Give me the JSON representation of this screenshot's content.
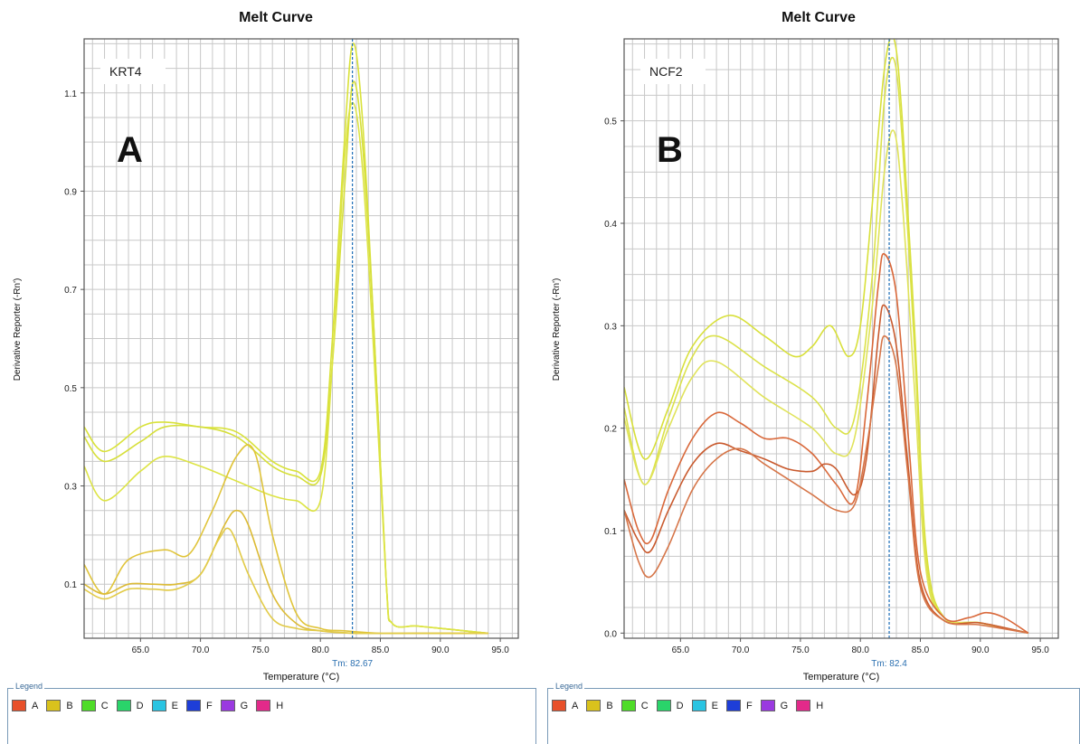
{
  "chart_data": [
    {
      "type": "line",
      "title": "Melt Curve",
      "panel_letter": "A",
      "gene_label": "KRT4",
      "xlabel": "Temperature (°C)",
      "ylabel": "Derivative Reporter (-Rn')",
      "xlim": [
        60.3,
        96.5
      ],
      "ylim": [
        -0.01,
        1.21
      ],
      "x_ticks": [
        65.0,
        70.0,
        75.0,
        80.0,
        85.0,
        90.0,
        95.0
      ],
      "x_tick_labels": [
        "65.0",
        "70.0",
        "75.0",
        "80.0",
        "85.0",
        "90.0",
        "95.0"
      ],
      "y_ticks": [
        0.1,
        0.3,
        0.5,
        0.7,
        0.9,
        1.1
      ],
      "y_tick_labels": [
        "0.1",
        "0.3",
        "0.5",
        "0.7",
        "0.9",
        "1.1"
      ],
      "grid": true,
      "threshold_x": 82.67,
      "threshold_label": "Tm: 82.67",
      "series": [
        {
          "color": "#d9e23a",
          "x": [
            60.3,
            62,
            65,
            67,
            70,
            73,
            76,
            78,
            80,
            81,
            82,
            82.7,
            83.5,
            84.5,
            85.5,
            86,
            88,
            90,
            92,
            94
          ],
          "y": [
            0.42,
            0.37,
            0.42,
            0.43,
            0.42,
            0.41,
            0.35,
            0.33,
            0.33,
            0.6,
            1.0,
            1.2,
            1.05,
            0.6,
            0.1,
            0.02,
            0.015,
            0.01,
            0.005,
            0.0
          ]
        },
        {
          "color": "#d6df3a",
          "x": [
            60.3,
            62,
            65,
            67,
            70,
            73,
            76,
            78,
            80,
            81,
            82,
            82.7,
            83.5,
            84.5,
            85.5,
            86,
            88,
            90,
            92,
            94
          ],
          "y": [
            0.4,
            0.35,
            0.39,
            0.42,
            0.42,
            0.4,
            0.34,
            0.32,
            0.32,
            0.55,
            0.9,
            1.12,
            1.0,
            0.6,
            0.1,
            0.02,
            0.015,
            0.01,
            0.005,
            0.0
          ]
        },
        {
          "color": "#dde444",
          "x": [
            60.3,
            62,
            65,
            67,
            70,
            73,
            76,
            78,
            80,
            81,
            82,
            82.7,
            83.5,
            84.5,
            85.5,
            86,
            88,
            90,
            92,
            94
          ],
          "y": [
            0.34,
            0.27,
            0.33,
            0.36,
            0.34,
            0.31,
            0.28,
            0.27,
            0.27,
            0.55,
            0.96,
            1.08,
            0.95,
            0.55,
            0.1,
            0.02,
            0.015,
            0.01,
            0.005,
            0.0
          ]
        },
        {
          "color": "#e0c43a",
          "x": [
            60.3,
            62,
            64,
            67,
            69,
            71,
            73,
            74.5,
            76,
            78,
            80,
            82,
            85,
            88,
            91,
            94
          ],
          "y": [
            0.14,
            0.08,
            0.15,
            0.17,
            0.16,
            0.25,
            0.36,
            0.37,
            0.2,
            0.04,
            0.01,
            0.005,
            0.0,
            0.0,
            0.0,
            0.0
          ]
        },
        {
          "color": "#dcbb35",
          "x": [
            60.3,
            62,
            64,
            66,
            68,
            70,
            72,
            73,
            74,
            76,
            78,
            80,
            83,
            86,
            90,
            94
          ],
          "y": [
            0.1,
            0.08,
            0.1,
            0.1,
            0.1,
            0.12,
            0.22,
            0.25,
            0.22,
            0.08,
            0.02,
            0.005,
            0.0,
            0.0,
            0.0,
            0.0
          ]
        },
        {
          "color": "#e2cb48",
          "x": [
            60.3,
            62,
            64,
            66,
            68,
            70,
            71.5,
            72.5,
            74,
            76,
            78,
            80,
            83,
            86,
            90,
            94
          ],
          "y": [
            0.09,
            0.07,
            0.09,
            0.09,
            0.09,
            0.12,
            0.19,
            0.21,
            0.12,
            0.03,
            0.01,
            0.005,
            0.0,
            0.0,
            0.0,
            0.0
          ]
        }
      ],
      "legend_title": "Legend",
      "legend": [
        {
          "label": "A",
          "color": "#e8502a"
        },
        {
          "label": "B",
          "color": "#d9c21c"
        },
        {
          "label": "C",
          "color": "#4fdc28"
        },
        {
          "label": "D",
          "color": "#2ad46a"
        },
        {
          "label": "E",
          "color": "#2ac4e2"
        },
        {
          "label": "F",
          "color": "#1e3ed8"
        },
        {
          "label": "G",
          "color": "#9a3ae0"
        },
        {
          "label": "H",
          "color": "#e22a8a"
        }
      ]
    },
    {
      "type": "line",
      "title": "Melt Curve",
      "panel_letter": "B",
      "gene_label": "NCF2",
      "xlabel": "Temperature (°C)",
      "ylabel": "Derivative Reporter (-Rn')",
      "xlim": [
        60.3,
        96.5
      ],
      "ylim": [
        -0.005,
        0.58
      ],
      "x_ticks": [
        65.0,
        70.0,
        75.0,
        80.0,
        85.0,
        90.0,
        95.0
      ],
      "x_tick_labels": [
        "65.0",
        "70.0",
        "75.0",
        "80.0",
        "85.0",
        "90.0",
        "95.0"
      ],
      "y_ticks": [
        0.0,
        0.1,
        0.2,
        0.3,
        0.4,
        0.5
      ],
      "y_tick_labels": [
        "0.0",
        "0.1",
        "0.2",
        "0.3",
        "0.4",
        "0.5"
      ],
      "grid": true,
      "threshold_x": 82.4,
      "threshold_label": "Tm: 82.4",
      "series": [
        {
          "color": "#d8e03a",
          "x": [
            60.3,
            62,
            64,
            66,
            69,
            72,
            74.5,
            76,
            77.5,
            79,
            80,
            81,
            82,
            82.8,
            83.5,
            84.5,
            85.5,
            87,
            90,
            94
          ],
          "y": [
            0.24,
            0.17,
            0.22,
            0.28,
            0.31,
            0.29,
            0.27,
            0.28,
            0.3,
            0.27,
            0.3,
            0.42,
            0.55,
            0.58,
            0.5,
            0.3,
            0.08,
            0.015,
            0.01,
            0.0
          ]
        },
        {
          "color": "#dbe24a",
          "x": [
            60.3,
            62,
            64,
            66,
            68,
            72,
            76,
            78,
            79.5,
            81,
            82,
            82.8,
            83.5,
            84.5,
            85.5,
            87,
            90,
            94
          ],
          "y": [
            0.22,
            0.145,
            0.21,
            0.27,
            0.29,
            0.26,
            0.23,
            0.2,
            0.21,
            0.35,
            0.52,
            0.56,
            0.48,
            0.28,
            0.07,
            0.015,
            0.01,
            0.0
          ]
        },
        {
          "color": "#e0e35a",
          "x": [
            60.3,
            62,
            64,
            66,
            68,
            72,
            76,
            78,
            79.5,
            81,
            82,
            82.8,
            83.5,
            84.5,
            85.5,
            87,
            90,
            94
          ],
          "y": [
            0.21,
            0.145,
            0.2,
            0.25,
            0.265,
            0.23,
            0.2,
            0.175,
            0.19,
            0.32,
            0.45,
            0.49,
            0.42,
            0.24,
            0.06,
            0.015,
            0.01,
            0.0
          ]
        },
        {
          "color": "#d9683a",
          "x": [
            60.3,
            61.5,
            62.5,
            64,
            66,
            68,
            70,
            72,
            74,
            76,
            78,
            79.5,
            80.5,
            81.5,
            82,
            83,
            84,
            85,
            87,
            89,
            90.5,
            92,
            94
          ],
          "y": [
            0.15,
            0.1,
            0.09,
            0.14,
            0.19,
            0.215,
            0.205,
            0.19,
            0.19,
            0.175,
            0.145,
            0.13,
            0.22,
            0.34,
            0.37,
            0.33,
            0.19,
            0.06,
            0.015,
            0.015,
            0.02,
            0.015,
            0.0
          ]
        },
        {
          "color": "#c95a2e",
          "x": [
            60.3,
            61.5,
            62.5,
            64,
            66,
            68,
            70,
            72,
            74,
            76,
            77,
            78,
            79.5,
            80.5,
            81.5,
            82,
            83,
            84,
            85,
            87,
            90,
            94
          ],
          "y": [
            0.12,
            0.09,
            0.08,
            0.12,
            0.165,
            0.185,
            0.178,
            0.17,
            0.16,
            0.158,
            0.165,
            0.16,
            0.135,
            0.17,
            0.29,
            0.32,
            0.28,
            0.16,
            0.05,
            0.012,
            0.01,
            0.0
          ]
        },
        {
          "color": "#d67548",
          "x": [
            60.3,
            61.5,
            62.5,
            64,
            66,
            68,
            70,
            72,
            74,
            76,
            78,
            79.5,
            80.5,
            81.5,
            82,
            83,
            84,
            85,
            87,
            90,
            94
          ],
          "y": [
            0.12,
            0.07,
            0.055,
            0.085,
            0.14,
            0.17,
            0.18,
            0.165,
            0.15,
            0.135,
            0.12,
            0.125,
            0.18,
            0.26,
            0.29,
            0.26,
            0.15,
            0.045,
            0.012,
            0.008,
            0.0
          ]
        }
      ],
      "legend_title": "Legend",
      "legend": [
        {
          "label": "A",
          "color": "#e8502a"
        },
        {
          "label": "B",
          "color": "#d9c21c"
        },
        {
          "label": "C",
          "color": "#4fdc28"
        },
        {
          "label": "D",
          "color": "#2ad46a"
        },
        {
          "label": "E",
          "color": "#2ac4e2"
        },
        {
          "label": "F",
          "color": "#1e3ed8"
        },
        {
          "label": "G",
          "color": "#9a3ae0"
        },
        {
          "label": "H",
          "color": "#e22a8a"
        }
      ]
    }
  ]
}
